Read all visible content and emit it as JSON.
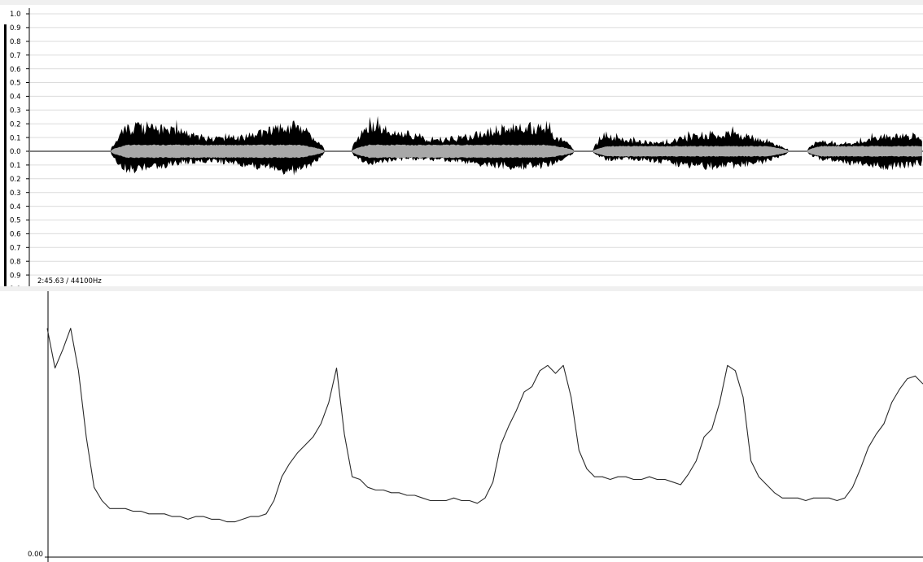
{
  "waveform_panel": {
    "amplitude_labels": [
      "1.0",
      "0.9",
      "0.8",
      "0.7",
      "0.6",
      "0.5",
      "0.4",
      "0.3",
      "0.2",
      "0.1",
      "0.0",
      "0.1",
      "0.2",
      "0.3",
      "0.4",
      "0.5",
      "0.6",
      "0.7",
      "0.8",
      "0.9",
      "1.0"
    ],
    "status": "2:45.63 / 44100Hz",
    "colors": {
      "peak": "#000000",
      "rms": "#a8a8a8",
      "grid": "#dcdcdc",
      "background": "#ffffff"
    },
    "segments": [
      {
        "start": 0.09,
        "end": 0.33,
        "peak_top": 0.22,
        "peak_bottom": 0.18,
        "rms": 0.05
      },
      {
        "start": 0.36,
        "end": 0.61,
        "peak_top": 0.22,
        "peak_bottom": 0.14,
        "rms": 0.05
      },
      {
        "start": 0.63,
        "end": 0.85,
        "peak_top": 0.16,
        "peak_bottom": 0.14,
        "rms": 0.04
      },
      {
        "start": 0.87,
        "end": 1.06,
        "peak_top": 0.14,
        "peak_bottom": 0.14,
        "rms": 0.04
      }
    ]
  },
  "pitch_panel": {
    "y_axis_label": "0.00",
    "line_color": "#2a2a2a"
  },
  "chart_data": {
    "type": "line",
    "ylim": [
      0,
      1
    ],
    "series": [
      {
        "values": [
          0.86,
          0.71,
          0.78,
          0.86,
          0.7,
          0.45,
          0.26,
          0.21,
          0.18,
          0.18,
          0.18,
          0.17,
          0.17,
          0.16,
          0.16,
          0.16,
          0.15,
          0.15,
          0.14,
          0.15,
          0.15,
          0.14,
          0.14,
          0.13,
          0.13,
          0.14,
          0.15,
          0.15,
          0.16,
          0.21,
          0.3,
          0.35,
          0.39,
          0.42,
          0.45,
          0.5,
          0.58,
          0.71,
          0.46,
          0.3,
          0.29,
          0.26,
          0.25,
          0.25,
          0.24,
          0.24,
          0.23,
          0.23,
          0.22,
          0.21,
          0.21,
          0.21,
          0.22,
          0.21,
          0.21,
          0.2,
          0.22,
          0.28,
          0.42,
          0.49,
          0.55,
          0.62,
          0.64,
          0.7,
          0.72,
          0.69,
          0.72,
          0.6,
          0.4,
          0.33,
          0.3,
          0.3,
          0.29,
          0.3,
          0.3,
          0.29,
          0.29,
          0.3,
          0.29,
          0.29,
          0.28,
          0.27,
          0.31,
          0.36,
          0.45,
          0.48,
          0.58,
          0.72,
          0.7,
          0.6,
          0.36,
          0.3,
          0.27,
          0.24,
          0.22,
          0.22,
          0.22,
          0.21,
          0.22,
          0.22,
          0.22,
          0.21,
          0.22,
          0.26,
          0.33,
          0.41,
          0.46,
          0.5,
          0.58,
          0.63,
          0.67,
          0.68,
          0.65
        ]
      }
    ]
  }
}
